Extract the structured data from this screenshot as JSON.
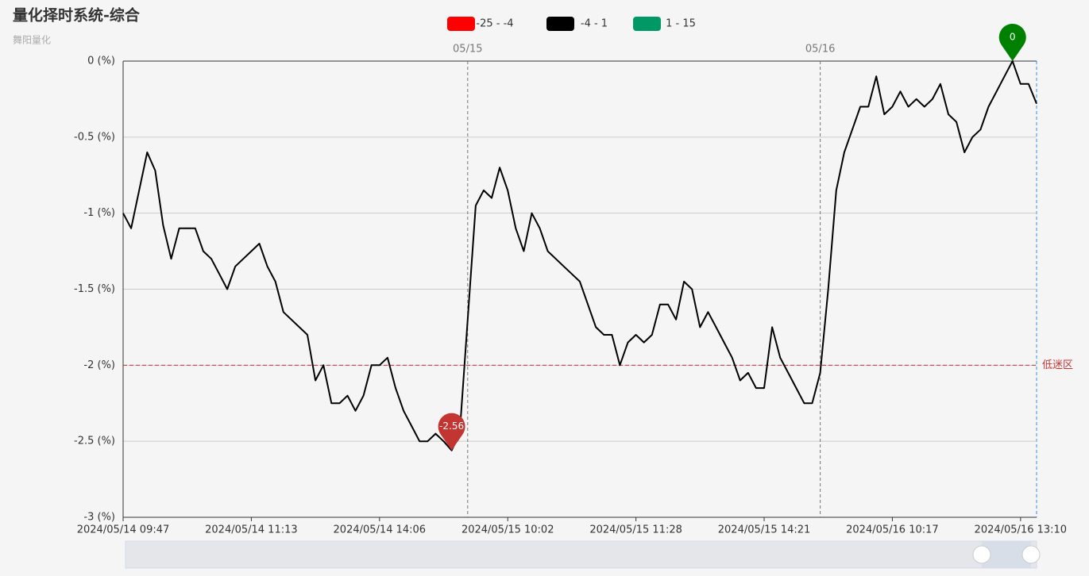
{
  "chart_data": {
    "type": "line",
    "title": "量化择时系统-综合",
    "subtitle": "舞阳量化",
    "categories": [
      "2024/05/14 09:47",
      null,
      null,
      null,
      null,
      null,
      null,
      null,
      null,
      null,
      null,
      null,
      null,
      null,
      null,
      null,
      "2024/05/14 11:13",
      null,
      null,
      null,
      null,
      null,
      null,
      null,
      null,
      null,
      null,
      null,
      null,
      null,
      null,
      null,
      "2024/05/14 14:06",
      null,
      null,
      null,
      null,
      null,
      null,
      null,
      null,
      null,
      null,
      null,
      null,
      null,
      null,
      null,
      "2024/05/15 10:02",
      null,
      null,
      null,
      null,
      null,
      null,
      null,
      null,
      null,
      null,
      null,
      null,
      null,
      null,
      null,
      "2024/05/15 11:28",
      null,
      null,
      null,
      null,
      null,
      null,
      null,
      null,
      null,
      null,
      null,
      null,
      null,
      null,
      null,
      "2024/05/15 14:21",
      null,
      null,
      null,
      null,
      null,
      null,
      null,
      null,
      null,
      null,
      null,
      null,
      null,
      null,
      null,
      "2024/05/16 10:17",
      null,
      null,
      null,
      null,
      null,
      null,
      null,
      null,
      null,
      null,
      null,
      null,
      null,
      null,
      null,
      "2024/05/16 13:10",
      null,
      null
    ],
    "series": [
      {
        "color": "#000000",
        "values": [
          -1.0,
          -1.1,
          -0.85,
          -0.6,
          -0.72,
          -1.08,
          -1.3,
          -1.1,
          -1.1,
          -1.1,
          -1.25,
          -1.3,
          -1.4,
          -1.5,
          -1.35,
          -1.3,
          -1.25,
          -1.2,
          -1.35,
          -1.45,
          -1.65,
          -1.7,
          -1.75,
          -1.8,
          -2.1,
          -2.0,
          -2.25,
          -2.25,
          -2.2,
          -2.3,
          -2.2,
          -2.0,
          -2.0,
          -1.95,
          -2.15,
          -2.3,
          -2.4,
          -2.5,
          -2.5,
          -2.45,
          -2.5,
          -2.56,
          -2.45,
          -1.7,
          -0.95,
          -0.85,
          -0.9,
          -0.7,
          -0.85,
          -1.1,
          -1.25,
          -1.0,
          -1.1,
          -1.25,
          -1.3,
          -1.35,
          -1.4,
          -1.45,
          -1.6,
          -1.75,
          -1.8,
          -1.8,
          -2.0,
          -1.85,
          -1.8,
          -1.85,
          -1.8,
          -1.6,
          -1.6,
          -1.7,
          -1.45,
          -1.5,
          -1.75,
          -1.65,
          -1.75,
          -1.85,
          -1.95,
          -2.1,
          -2.05,
          -2.15,
          -2.15,
          -1.75,
          -1.95,
          -2.05,
          -2.15,
          -2.25,
          -2.25,
          -2.05,
          -1.5,
          -0.85,
          -0.6,
          -0.45,
          -0.3,
          -0.3,
          -0.1,
          -0.35,
          -0.3,
          -0.2,
          -0.3,
          -0.25,
          -0.3,
          -0.25,
          -0.15,
          -0.35,
          -0.4,
          -0.6,
          -0.5,
          -0.45,
          -0.3,
          -0.2,
          -0.1,
          0,
          -0.15,
          -0.15,
          -0.28
        ]
      }
    ],
    "ylim": [
      -3,
      0
    ],
    "yticks": [
      {
        "value": 0,
        "label": "0 (%)"
      },
      {
        "value": -0.5,
        "label": "-0.5 (%)"
      },
      {
        "value": -1,
        "label": "-1 (%)"
      },
      {
        "value": -1.5,
        "label": "-1.5 (%)"
      },
      {
        "value": -2,
        "label": "-2 (%)"
      },
      {
        "value": -2.5,
        "label": "-2.5 (%)"
      },
      {
        "value": -3,
        "label": "-3 (%)"
      }
    ],
    "grid": true,
    "pieces": [
      {
        "label": "-25 - -4",
        "color": "#ff0000"
      },
      {
        "label": "-4 - 1",
        "color": "#000000"
      },
      {
        "label": "1 - 15",
        "color": "#009966"
      }
    ],
    "day_markers": [
      {
        "at": 43,
        "label": "05/15"
      },
      {
        "at": 87,
        "label": "05/16"
      }
    ],
    "mark_line": {
      "value": -2,
      "label": "低迷区",
      "color": "#c23531"
    },
    "mark_points": [
      {
        "at": 41,
        "color": "#c23531"
      },
      {
        "at": 111,
        "color": "#008000"
      }
    ]
  }
}
